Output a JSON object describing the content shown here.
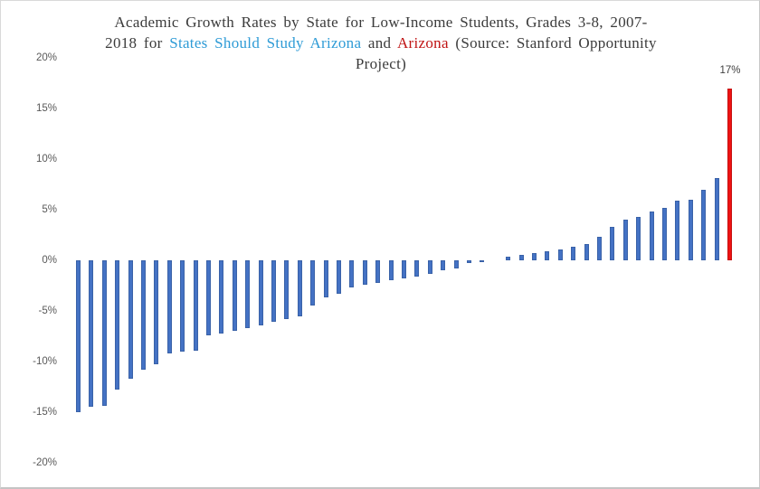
{
  "title": {
    "line1": "Academic Growth Rates by State for Low-Income Students, Grades 3-8, 2007-",
    "line2_pre": "2018 for",
    "line2_blue": "States Should Study Arizona",
    "line2_and": "and",
    "line2_red": "Arizona",
    "line2_post": "(Source: Stanford Opportunity",
    "line3": "Project)"
  },
  "colors": {
    "bar_blue": "#4472C4",
    "bar_red": "#EE1212",
    "title_text": "#3B3B3B",
    "title_highlight_blue": "#2E9BD6",
    "title_highlight_red": "#C01414",
    "axis_text": "#595959"
  },
  "chart_data": {
    "type": "bar",
    "title": "Academic Growth Rates by State for Low-Income Students, Grades 3-8, 2007-2018 for States Should Study Arizona and Arizona (Source: Stanford Opportunity Project)",
    "xlabel": "",
    "ylabel": "",
    "ylim": [
      -20,
      20
    ],
    "grid": false,
    "legend": false,
    "yticks": [
      {
        "label": "20%",
        "value": 20
      },
      {
        "label": "15%",
        "value": 15
      },
      {
        "label": "10%",
        "value": 10
      },
      {
        "label": "5%",
        "value": 5
      },
      {
        "label": "0%",
        "value": 0
      },
      {
        "label": "-5%",
        "value": -5
      },
      {
        "label": "-10%",
        "value": -10
      },
      {
        "label": "-15%",
        "value": -15
      },
      {
        "label": "-20%",
        "value": -20
      }
    ],
    "values": [
      -15.0,
      -14.5,
      -14.4,
      -12.8,
      -11.7,
      -10.8,
      -10.3,
      -9.2,
      -9.0,
      -8.9,
      -7.4,
      -7.2,
      -7.0,
      -6.7,
      -6.4,
      -6.1,
      -5.8,
      -5.5,
      -4.5,
      -3.7,
      -3.3,
      -2.7,
      -2.4,
      -2.2,
      -2.0,
      -1.8,
      -1.6,
      -1.3,
      -1.0,
      -0.8,
      -0.3,
      -0.1,
      0.0,
      0.4,
      0.5,
      0.7,
      0.9,
      1.1,
      1.3,
      1.6,
      2.3,
      3.3,
      4.0,
      4.3,
      4.8,
      5.2,
      5.9,
      6.0,
      7.0,
      8.1,
      17.0
    ],
    "series": [
      {
        "name": "States Should Study Arizona (blue bars)",
        "color": "#4472C4",
        "count": 50
      },
      {
        "name": "Arizona (red bar)",
        "color": "#EE1212",
        "count": 1
      }
    ],
    "highlight_index": 50,
    "annotation": {
      "text": "17%",
      "value": 17
    }
  }
}
